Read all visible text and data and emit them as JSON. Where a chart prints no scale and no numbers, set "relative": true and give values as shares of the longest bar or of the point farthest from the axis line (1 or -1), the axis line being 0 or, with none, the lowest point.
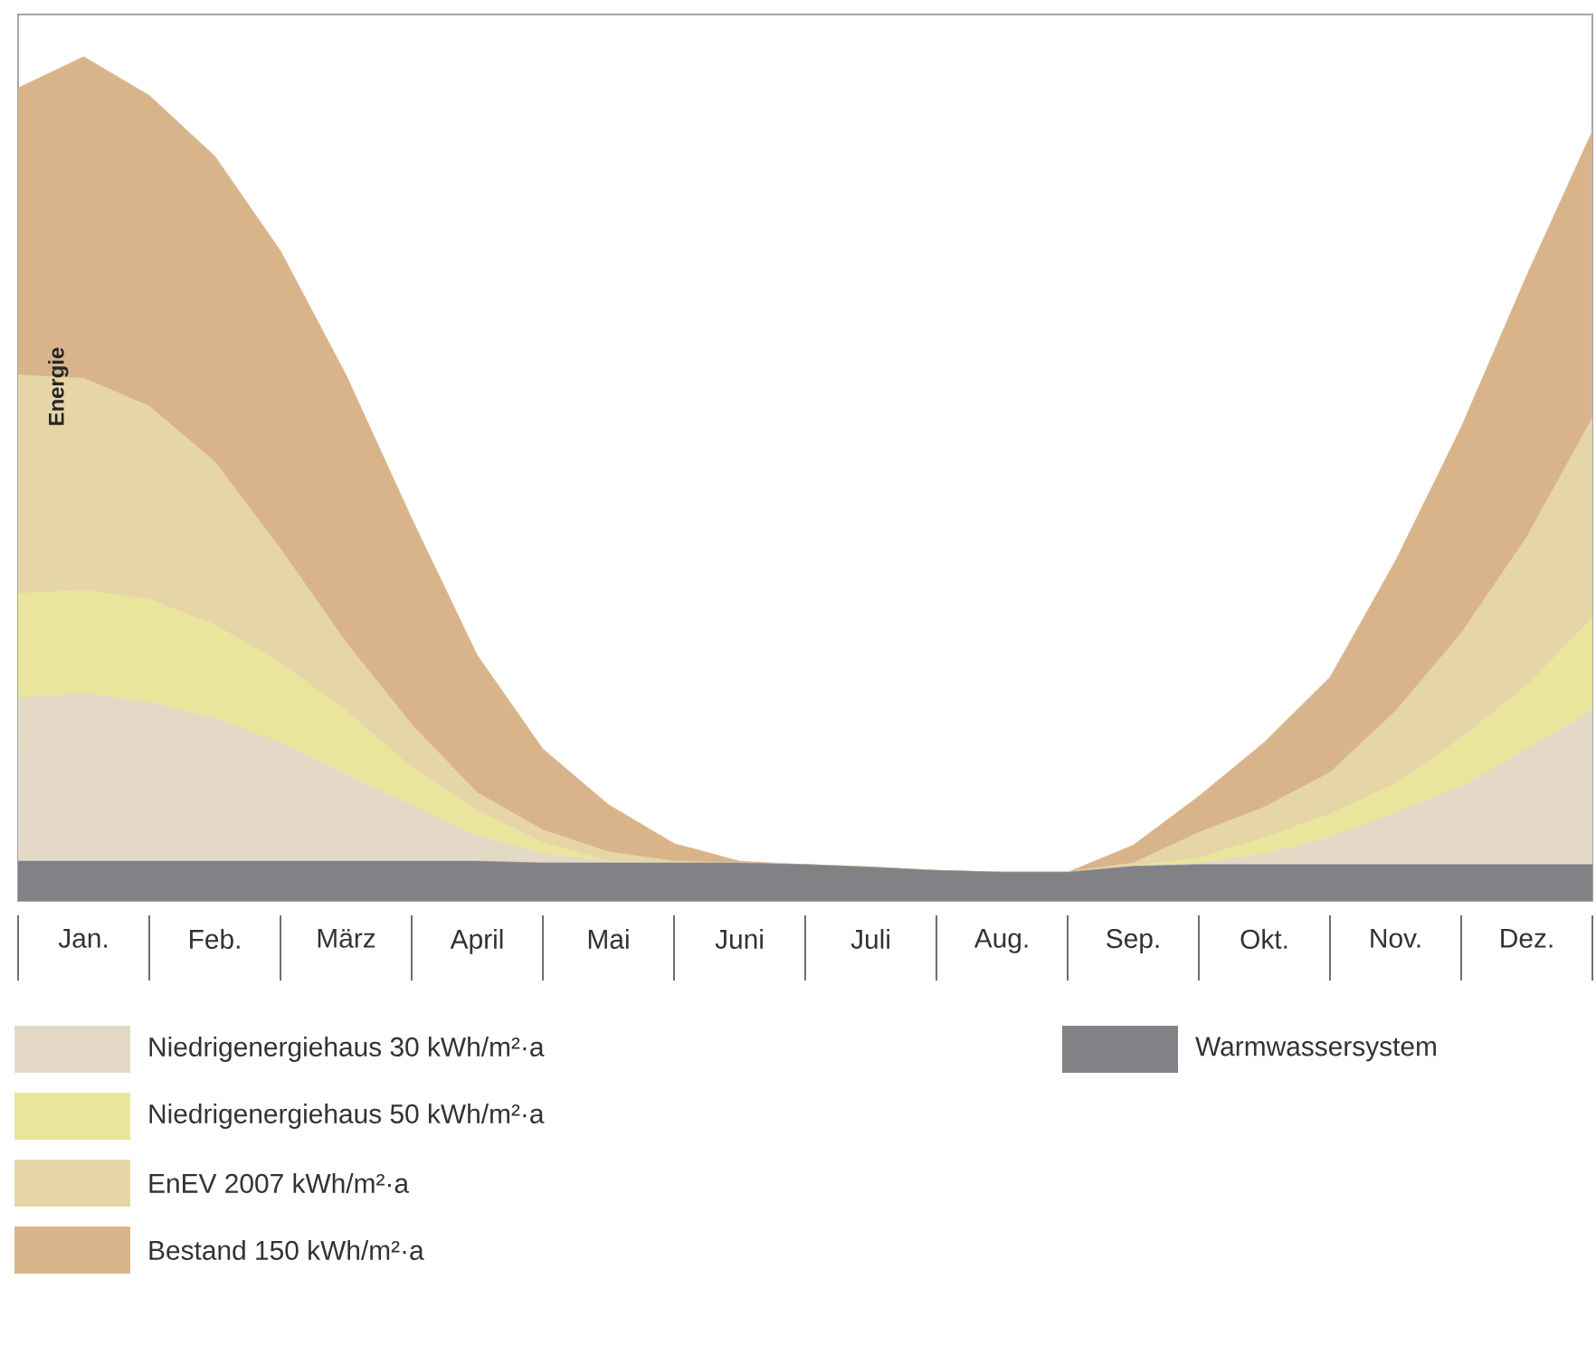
{
  "chart_data": {
    "type": "area",
    "stacked": true,
    "relative": true,
    "ylabel": "Energie",
    "legend": "bottom",
    "grid": false,
    "categories": [
      null,
      "Jan.",
      null,
      "Feb.",
      null,
      "März",
      null,
      "April",
      null,
      "Mai",
      null,
      "Juni",
      null,
      "Juli",
      null,
      "Aug.",
      null,
      "Sep.",
      null,
      "Okt.",
      null,
      "Nov.",
      null,
      "Dez.",
      null
    ],
    "series": [
      {
        "name": "Warmwassersystem",
        "color": "#808285",
        "values": [
          0.047,
          0.047,
          0.047,
          0.047,
          0.047,
          0.047,
          0.047,
          0.047,
          0.045,
          0.045,
          0.045,
          0.045,
          0.043,
          0.04,
          0.036,
          0.034,
          0.034,
          0.041,
          0.043,
          0.043,
          0.043,
          0.043,
          0.043,
          0.043,
          0.043
        ]
      },
      {
        "name": "Niedrigenergiehaus 30 kWh/m²·a",
        "color": "#e3d9c6",
        "values": [
          0.193,
          0.199,
          0.188,
          0.169,
          0.141,
          0.103,
          0.066,
          0.03,
          0.011,
          0.002,
          0,
          0,
          0,
          0,
          0,
          0,
          0,
          0,
          0.002,
          0.013,
          0.032,
          0.062,
          0.092,
          0.137,
          0.182
        ]
      },
      {
        "name": "Niedrigenergiehaus 50 kWh/m²·a",
        "color": "#e9e59c",
        "values": [
          0.124,
          0.122,
          0.122,
          0.111,
          0.094,
          0.075,
          0.045,
          0.03,
          0.013,
          0,
          0,
          0,
          0,
          0,
          0,
          0,
          0,
          0,
          0.006,
          0.019,
          0.028,
          0.034,
          0.058,
          0.075,
          0.111
        ]
      },
      {
        "name": "EnEV 2007 kWh/m²·a",
        "color": "#e6d5a6",
        "values": [
          0.259,
          0.251,
          0.229,
          0.193,
          0.135,
          0.081,
          0.051,
          0.021,
          0.015,
          0.011,
          0.002,
          0,
          0,
          0,
          0,
          0,
          0,
          0.004,
          0.03,
          0.036,
          0.049,
          0.086,
          0.124,
          0.176,
          0.236
        ]
      },
      {
        "name": "Bestand 150 kWh/m²·a",
        "color": "#d9b48a",
        "values": [
          0.34,
          0.381,
          0.368,
          0.362,
          0.353,
          0.317,
          0.244,
          0.163,
          0.096,
          0.056,
          0.021,
          0.002,
          0,
          0,
          0,
          0,
          0,
          0.021,
          0.043,
          0.077,
          0.113,
          0.178,
          0.244,
          0.31,
          0.34
        ]
      }
    ]
  }
}
